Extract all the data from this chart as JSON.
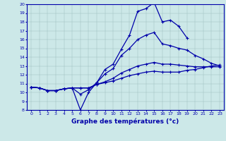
{
  "xlabel": "Graphe des températures (°c)",
  "background_color": "#cce8e8",
  "line_color": "#0000aa",
  "ylim": [
    8,
    20
  ],
  "xlim": [
    -0.5,
    23.5
  ],
  "yticks": [
    8,
    9,
    10,
    11,
    12,
    13,
    14,
    15,
    16,
    17,
    18,
    19,
    20
  ],
  "xticks": [
    0,
    1,
    2,
    3,
    4,
    5,
    6,
    7,
    8,
    9,
    10,
    11,
    12,
    13,
    14,
    15,
    16,
    17,
    18,
    19,
    20,
    21,
    22,
    23
  ],
  "series": [
    [
      10.6,
      10.5,
      10.2,
      10.2,
      10.4,
      10.5,
      8.0,
      10.0,
      11.1,
      12.6,
      13.2,
      14.9,
      16.5,
      19.2,
      19.5,
      20.2,
      18.0,
      18.2,
      17.5,
      16.2,
      null,
      null,
      null,
      null
    ],
    [
      10.6,
      10.5,
      10.2,
      10.2,
      10.4,
      10.5,
      9.8,
      10.3,
      11.1,
      12.1,
      12.7,
      14.2,
      15.0,
      16.0,
      16.5,
      16.8,
      15.5,
      15.3,
      15.0,
      14.8,
      14.2,
      13.8,
      13.3,
      13.0
    ],
    [
      10.6,
      10.5,
      10.2,
      10.2,
      10.4,
      10.5,
      10.5,
      10.5,
      10.9,
      11.2,
      11.6,
      12.2,
      12.6,
      13.0,
      13.2,
      13.4,
      13.2,
      13.2,
      13.1,
      13.0,
      12.9,
      12.9,
      12.9,
      12.9
    ],
    [
      10.6,
      10.5,
      10.2,
      10.2,
      10.4,
      10.5,
      10.5,
      10.5,
      10.9,
      11.1,
      11.3,
      11.6,
      11.9,
      12.1,
      12.3,
      12.4,
      12.3,
      12.3,
      12.3,
      12.5,
      12.6,
      12.8,
      13.0,
      13.1
    ]
  ]
}
